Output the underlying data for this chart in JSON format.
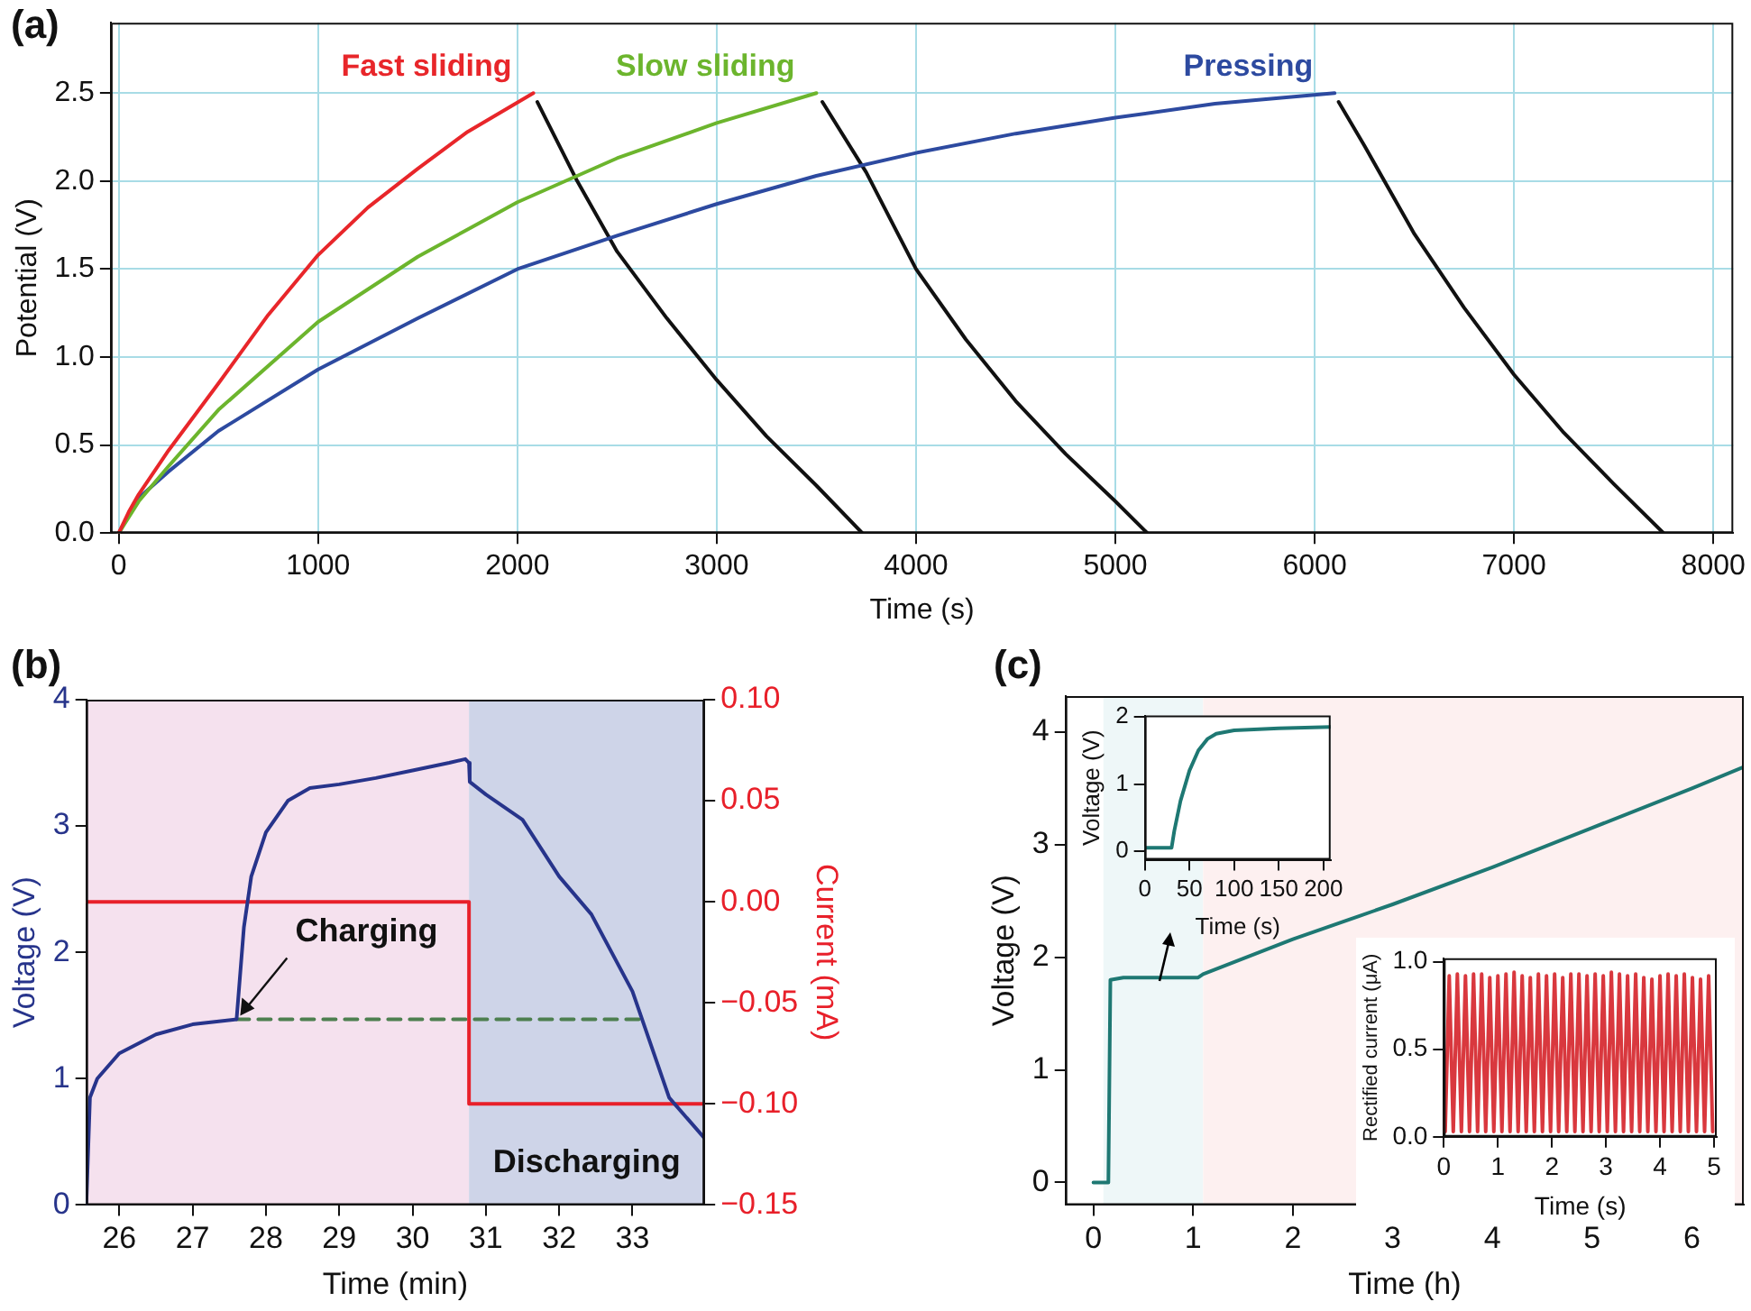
{
  "chart_data": [
    {
      "type": "line",
      "title": "(a)",
      "xlabel": "Time (s)",
      "ylabel": "Potential (V)",
      "xlim": [
        -40,
        8100
      ],
      "ylim": [
        0,
        2.9
      ],
      "xticks": [
        0,
        1000,
        2000,
        3000,
        4000,
        5000,
        6000,
        7000,
        8000
      ],
      "yticks": [
        {
          "value": 0,
          "label": "0.0"
        },
        0.5,
        {
          "value": 1,
          "label": "1.0"
        },
        1.5,
        {
          "value": 2,
          "label": "2.0"
        },
        2.5
      ],
      "grid": true,
      "marker": "none",
      "series": [
        {
          "name": "Fast sliding",
          "color": "#e8262a",
          "x": [
            0,
            50,
            100,
            250,
            500,
            750,
            1000,
            1250,
            1500,
            1750,
            2080
          ],
          "values": [
            0,
            0.12,
            0.22,
            0.47,
            0.85,
            1.24,
            1.58,
            1.85,
            2.07,
            2.28,
            2.5
          ]
        },
        {
          "name": "Slow sliding",
          "color": "#6cb52d",
          "x": [
            0,
            100,
            250,
            500,
            1000,
            1500,
            2000,
            2500,
            3000,
            3500
          ],
          "values": [
            0,
            0.18,
            0.38,
            0.7,
            1.2,
            1.57,
            1.88,
            2.13,
            2.33,
            2.5
          ]
        },
        {
          "name": "Pressing",
          "color": "#2d4aa0",
          "x": [
            0,
            100,
            250,
            500,
            1000,
            1500,
            2000,
            2500,
            3000,
            3500,
            4000,
            4500,
            5000,
            5500,
            6100
          ],
          "values": [
            0,
            0.2,
            0.35,
            0.58,
            0.93,
            1.22,
            1.5,
            1.69,
            1.87,
            2.03,
            2.16,
            2.27,
            2.36,
            2.44,
            2.5
          ]
        },
        {
          "color": "#111111",
          "x": [
            2100,
            2300,
            2500,
            2750,
            3000,
            3250,
            3500,
            3730
          ],
          "values": [
            2.45,
            2.0,
            1.6,
            1.22,
            0.87,
            0.55,
            0.27,
            0
          ]
        },
        {
          "color": "#111111",
          "x": [
            3530,
            3750,
            4000,
            4250,
            4500,
            4750,
            5000,
            5160
          ],
          "values": [
            2.45,
            2.05,
            1.5,
            1.1,
            0.75,
            0.45,
            0.18,
            0
          ]
        },
        {
          "color": "#111111",
          "x": [
            6120,
            6250,
            6500,
            6750,
            7000,
            7250,
            7500,
            7750
          ],
          "values": [
            2.45,
            2.2,
            1.7,
            1.28,
            0.9,
            0.57,
            0.28,
            0
          ]
        }
      ]
    },
    {
      "type": "line",
      "title": "(b)",
      "xlabel": "Time (min)",
      "ylabel": "Voltage (V)",
      "y2label": "Current (mA)",
      "xlim": [
        25.55,
        33.98
      ],
      "ylim": [
        0,
        4
      ],
      "y2lim": [
        -0.15,
        0.1
      ],
      "xticks": [
        26,
        27,
        28,
        29,
        30,
        31,
        32,
        33
      ],
      "yticks": [
        0,
        1,
        2,
        3,
        4
      ],
      "y2ticks": [
        {
          "value": -0.15,
          "label": "−0.15"
        },
        {
          "value": -0.1,
          "label": "−0.10"
        },
        {
          "value": -0.05,
          "label": "−0.05"
        },
        {
          "value": 0,
          "label": "0.00"
        },
        {
          "value": 0.05,
          "label": "0.05"
        },
        {
          "value": 0.1,
          "label": "0.10"
        }
      ],
      "marker": "none",
      "bands": [
        {
          "axis": "x",
          "from": 25.55,
          "to": 30.77,
          "color": "#f5e1ee"
        },
        {
          "axis": "x",
          "from": 30.77,
          "to": 33.98,
          "color": "#ced4e8",
          "label": "Discharging"
        }
      ],
      "annotations": [
        {
          "text": "Charging",
          "x": 27.6,
          "y": 1.47
        }
      ],
      "series": [
        {
          "color": "#27348b",
          "x": [
            25.55,
            25.6,
            25.7,
            26,
            26.5,
            27,
            27.6,
            27.7,
            27.8,
            28,
            28.3,
            28.6,
            29,
            29.5,
            30,
            30.5,
            30.72,
            30.77,
            30.78,
            31,
            31.5,
            32,
            32.44,
            33,
            33.5,
            33.98
          ],
          "values": [
            0,
            0.85,
            1.0,
            1.2,
            1.35,
            1.43,
            1.47,
            2.2,
            2.6,
            2.95,
            3.2,
            3.3,
            3.33,
            3.38,
            3.44,
            3.5,
            3.53,
            3.5,
            3.35,
            3.25,
            3.05,
            2.6,
            2.3,
            1.69,
            0.85,
            0.53
          ]
        },
        {
          "color": "#e8202a",
          "axis": "y2",
          "x": [
            25.55,
            30.77,
            30.77,
            33.98
          ],
          "values": [
            0,
            0,
            -0.1,
            -0.1
          ]
        },
        {
          "color": "#4d7f4f",
          "line_style": "dashed",
          "x": [
            27.6,
            33.15
          ],
          "values": [
            1.47,
            1.47
          ]
        }
      ]
    },
    {
      "type": "line",
      "title": "(c)",
      "xlabel": "Time (h)",
      "ylabel": "Voltage (V)",
      "xlim": [
        -0.28,
        6.52
      ],
      "ylim": [
        -0.2,
        4.32
      ],
      "xticks": [
        0,
        1,
        2,
        3,
        4,
        5,
        6
      ],
      "yticks": [
        0,
        1,
        2,
        3,
        4
      ],
      "marker": "none",
      "bands": [
        {
          "axis": "x",
          "from": 0.1,
          "to": 1.1,
          "color": "#eef7f8"
        },
        {
          "axis": "x",
          "from": 1.1,
          "to": 6.52,
          "color": "#fdf0f0"
        }
      ],
      "series": [
        {
          "color": "#1e7873",
          "x": [
            0,
            0.15,
            0.17,
            0.3,
            1.05,
            1.1,
            2,
            3,
            4,
            5,
            6,
            6.52
          ],
          "values": [
            0,
            0,
            1.8,
            1.82,
            1.82,
            1.85,
            2.16,
            2.47,
            2.8,
            3.15,
            3.5,
            3.69
          ]
        }
      ]
    },
    {
      "type": "line",
      "xlabel": "Time (s)",
      "ylabel": "Voltage (V)",
      "xlim": [
        0,
        208
      ],
      "ylim": [
        -0.13,
        2.02
      ],
      "xticks": [
        0,
        50,
        100,
        150,
        200
      ],
      "yticks": [
        0,
        1,
        2
      ],
      "marker": "none",
      "series": [
        {
          "color": "#1e7873",
          "x": [
            0,
            30,
            33,
            40,
            50,
            60,
            70,
            80,
            100,
            150,
            208
          ],
          "values": [
            0.05,
            0.05,
            0.3,
            0.75,
            1.2,
            1.5,
            1.67,
            1.75,
            1.8,
            1.83,
            1.85
          ]
        }
      ]
    },
    {
      "type": "line",
      "xlabel": "Time (s)",
      "ylabel": "Rectified current (μA)",
      "xlim": [
        0,
        5.05
      ],
      "ylim": [
        0,
        1.02
      ],
      "xticks": [
        0,
        1,
        2,
        3,
        4,
        5
      ],
      "yticks": [
        {
          "value": 0,
          "label": "0.0"
        },
        0.5,
        {
          "value": 1,
          "label": "1.0"
        }
      ],
      "marker": "none",
      "series": [
        {
          "color": "#d9383e",
          "x": [
            0.025,
            0.1,
            0.175,
            0.25,
            0.325,
            0.4,
            0.475,
            0.55,
            0.625,
            0.7,
            0.775,
            0.85,
            0.925,
            1.0,
            1.075,
            1.15,
            1.225,
            1.3,
            1.375,
            1.45,
            1.525,
            1.6,
            1.675,
            1.75,
            1.825,
            1.9,
            1.975,
            2.05,
            2.125,
            2.2,
            2.275,
            2.35,
            2.425,
            2.5,
            2.575,
            2.65,
            2.725,
            2.8,
            2.875,
            2.95,
            3.025,
            3.1,
            3.175,
            3.25,
            3.325,
            3.4,
            3.475,
            3.55,
            3.625,
            3.7,
            3.775,
            3.85,
            3.925,
            4.0,
            4.075,
            4.15,
            4.225,
            4.3,
            4.375,
            4.45,
            4.525,
            4.6,
            4.675,
            4.75,
            4.825,
            4.9,
            4.975
          ],
          "values": [
            0.03,
            0.92,
            0.03,
            0.93,
            0.03,
            0.92,
            0.03,
            0.93,
            0.03,
            0.93,
            0.03,
            0.91,
            0.03,
            0.92,
            0.03,
            0.93,
            0.03,
            0.94,
            0.03,
            0.92,
            0.03,
            0.91,
            0.03,
            0.93,
            0.03,
            0.92,
            0.03,
            0.93,
            0.03,
            0.91,
            0.03,
            0.93,
            0.03,
            0.93,
            0.03,
            0.92,
            0.03,
            0.93,
            0.03,
            0.92,
            0.03,
            0.94,
            0.03,
            0.93,
            0.03,
            0.92,
            0.03,
            0.93,
            0.03,
            0.91,
            0.03,
            0.9,
            0.03,
            0.92,
            0.03,
            0.93,
            0.03,
            0.92,
            0.03,
            0.93,
            0.03,
            0.91,
            0.03,
            0.9,
            0.03,
            0.92,
            0.03
          ]
        }
      ]
    }
  ]
}
